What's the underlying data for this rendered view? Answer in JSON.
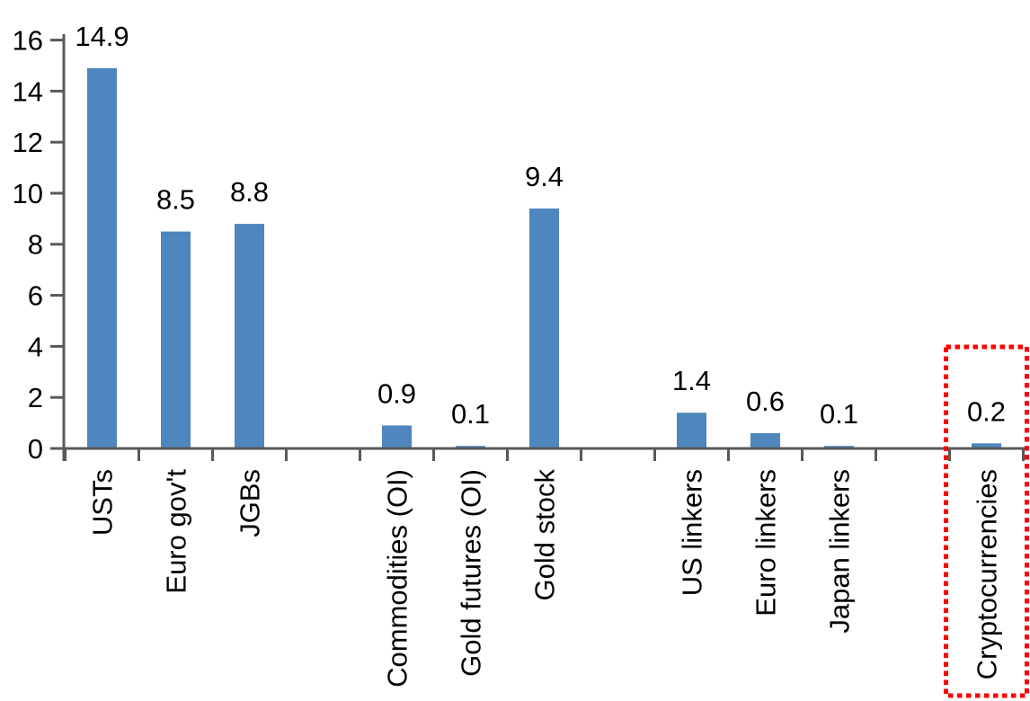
{
  "chart_data": {
    "type": "bar",
    "title": "",
    "xlabel": "",
    "ylabel": "",
    "categories": [
      "USTs",
      "Euro gov't",
      "JGBs",
      "Commodities (OI)",
      "Gold futures (OI)",
      "Gold stock",
      "US linkers",
      "Euro linkers",
      "Japan linkers",
      "Cryptocurrencies"
    ],
    "values": [
      14.9,
      8.5,
      8.8,
      0.9,
      0.1,
      9.4,
      1.4,
      0.6,
      0.1,
      0.2
    ],
    "value_labels": [
      "14.9",
      "8.5",
      "8.8",
      "0.9",
      "0.1",
      "9.4",
      "1.4",
      "0.6",
      "0.1",
      "0.2"
    ],
    "slots": [
      0,
      1,
      2,
      4,
      5,
      6,
      8,
      9,
      10,
      12
    ],
    "total_slots": 13,
    "groups": [
      [
        "USTs",
        "Euro gov't",
        "JGBs"
      ],
      [
        "Commodities (OI)",
        "Gold futures (OI)",
        "Gold stock"
      ],
      [
        "US linkers",
        "Euro linkers",
        "Japan linkers"
      ],
      [
        "Cryptocurrencies"
      ]
    ],
    "y_axis": {
      "min": 0,
      "max": 16,
      "tick_step": 2,
      "tick_labels": [
        "0",
        "2",
        "4",
        "6",
        "8",
        "10",
        "12",
        "14",
        "16"
      ]
    },
    "grid": false,
    "legend": false,
    "bar_color": "#4e86bd",
    "axis_color": "#595959",
    "label_color": "#000000",
    "highlight": {
      "category": "Cryptocurrencies",
      "box_color": "#ff0000",
      "box_style": "dotted"
    }
  }
}
